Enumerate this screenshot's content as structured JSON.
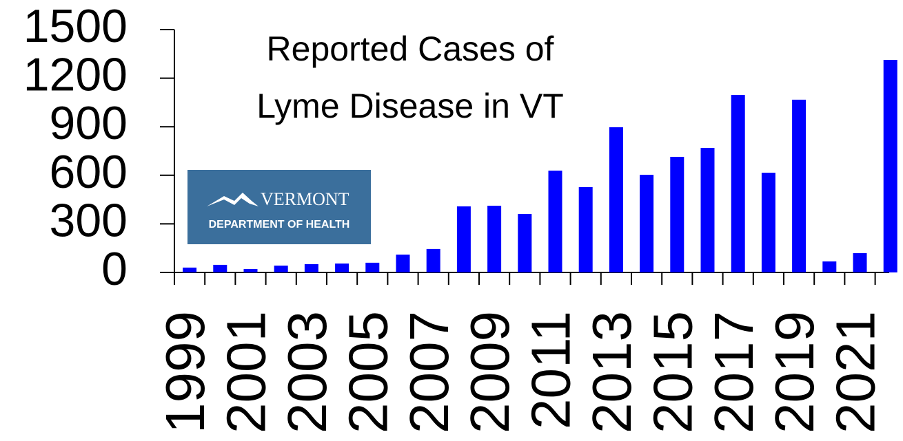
{
  "chart_data": {
    "type": "bar",
    "title": [
      "Reported Cases of",
      "Lyme Disease in VT"
    ],
    "logo": {
      "name": "VERMONT",
      "subtitle": "DEPARTMENT OF HEALTH"
    },
    "categories": [
      "1999",
      null,
      "2001",
      null,
      "2003",
      null,
      "2005",
      null,
      "2007",
      null,
      "2009",
      null,
      "2011",
      null,
      "2013",
      null,
      "2015",
      null,
      "2017",
      null,
      "2019",
      null,
      "2021",
      null
    ],
    "values": [
      30,
      47,
      21,
      42,
      51,
      55,
      60,
      110,
      145,
      408,
      412,
      361,
      629,
      527,
      897,
      603,
      714,
      769,
      1096,
      616,
      1067,
      68,
      119,
      1313
    ],
    "color": "#0000ff",
    "ylim": [
      0,
      1500
    ],
    "yticks": [
      0,
      300,
      600,
      900,
      1200,
      1500
    ],
    "grid": false
  }
}
